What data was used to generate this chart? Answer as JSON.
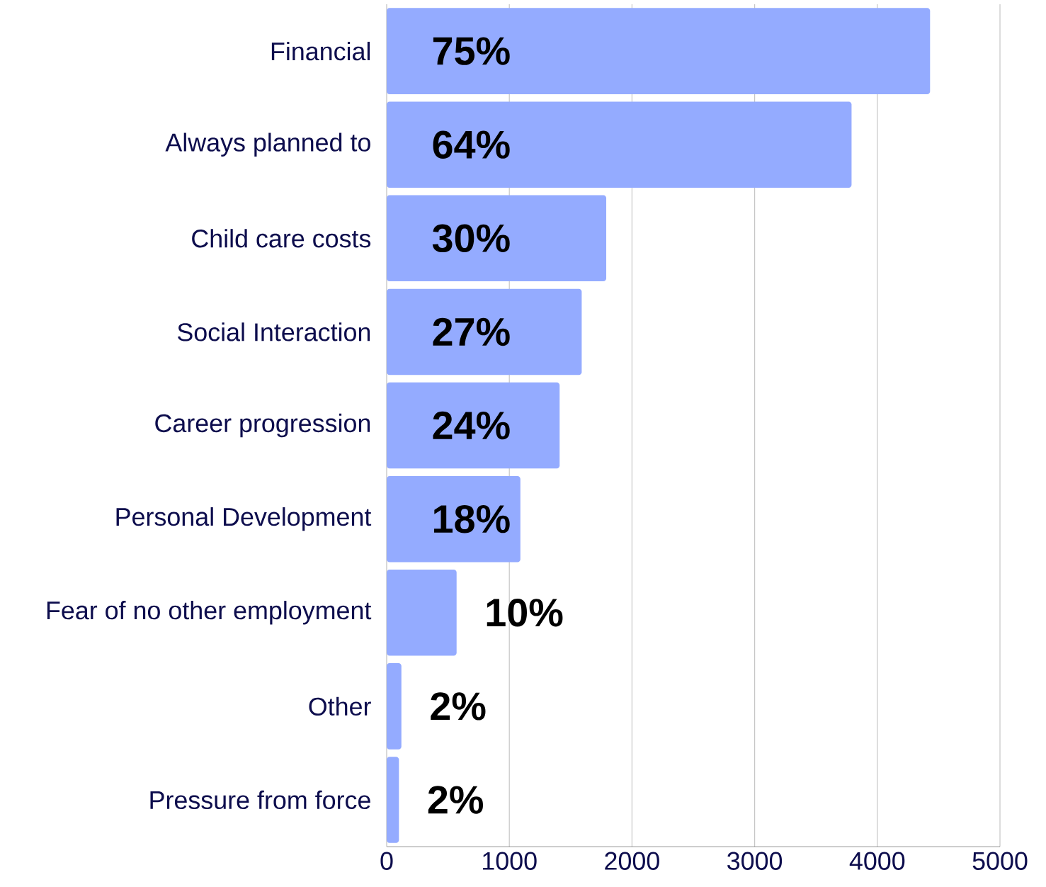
{
  "chart_data": {
    "type": "bar",
    "orientation": "horizontal",
    "categories": [
      "Financial",
      "Always planned to",
      "Child care costs",
      "Social Interaction",
      "Career progression",
      "Personal Development",
      "Fear of no other employment",
      "Other",
      "Pressure from force"
    ],
    "values": [
      4430,
      3790,
      1790,
      1590,
      1410,
      1090,
      570,
      120,
      100
    ],
    "annotations": [
      "75%",
      "64%",
      "30%",
      "27%",
      "24%",
      "18%",
      "10%",
      "2%",
      "2%"
    ],
    "color": "#94abff",
    "xlim": [
      0,
      5000
    ],
    "xticks": [
      0,
      1000,
      2000,
      3000,
      4000,
      5000
    ],
    "grid": "x"
  }
}
